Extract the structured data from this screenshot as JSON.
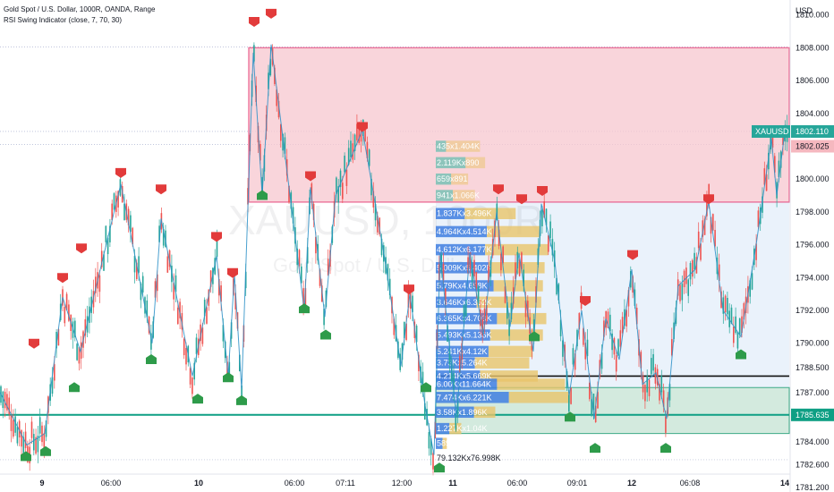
{
  "header": {
    "symbol_line": "Gold Spot / U.S. Dollar, 1000R, OANDA, Range",
    "indicator_line": "RSI Swing Indicator (close, 7, 70, 30)"
  },
  "watermark": {
    "symbol": "XAUUSD, 1000R",
    "name": "Gold Spot / U.S. Dollar"
  },
  "chart_data": {
    "type": "candlestick",
    "currency_label": "USD",
    "y_ticks": [
      1781.2,
      1782.6,
      1784.0,
      1785.635,
      1787.0,
      1788.5,
      1790.0,
      1792.0,
      1794.0,
      1796.0,
      1798.0,
      1800.0,
      1802.025,
      1804.0,
      1806.0,
      1808.0,
      1810.0
    ],
    "y_tick_labels": [
      "1781.200",
      "1782.600",
      "1784.000",
      "1785.635",
      "1787.000",
      "1788.500",
      "1790.000",
      "1792.000",
      "1794.000",
      "1796.000",
      "1798.000",
      "1800.000",
      "1802.025",
      "1804.000",
      "1806.000",
      "1808.000",
      "1810.000"
    ],
    "x_tick_labels": [
      "9",
      "06:00",
      "10",
      "06:00",
      "07:11",
      "12:00",
      "11",
      "06:00",
      "09:01",
      "12",
      "06:08",
      "14"
    ],
    "bold_x_ticks": [
      "9",
      "10",
      "11",
      "12",
      "14"
    ],
    "last_price": {
      "label": "XAUUSD",
      "value": "1802.110"
    },
    "secondary_price": {
      "value": "1802.025"
    },
    "support_line": {
      "value": "1785.635"
    },
    "zones": [
      {
        "name": "supply",
        "top": 1808.0,
        "bottom": 1798.6,
        "color": "#f8c7cf",
        "border": "#e5457a"
      },
      {
        "name": "demand",
        "top": 1787.3,
        "bottom": 1784.5,
        "color": "#cfe9d9",
        "border": "#1e9e73"
      },
      {
        "name": "range",
        "top": 1798.6,
        "bottom": 1784.5,
        "color": "#e3effb",
        "border": "none"
      }
    ],
    "black_line": 1788.0,
    "swing_path": [
      [
        0,
        1787.0
      ],
      [
        30,
        1783.8
      ],
      [
        50,
        1784.5
      ],
      [
        70,
        1792.8
      ],
      [
        90,
        1789.5
      ],
      [
        135,
        1799.7
      ],
      [
        170,
        1790.0
      ],
      [
        180,
        1797.6
      ],
      [
        215,
        1788.0
      ],
      [
        242,
        1795.3
      ],
      [
        255,
        1788.0
      ],
      [
        262,
        1794.2
      ],
      [
        270,
        1787.2
      ],
      [
        283,
        1807.7
      ],
      [
        293,
        1799.0
      ],
      [
        303,
        1808.2
      ],
      [
        315,
        1803.0
      ],
      [
        340,
        1792.0
      ],
      [
        347,
        1799.5
      ],
      [
        363,
        1791.6
      ],
      [
        375,
        1799.0
      ],
      [
        405,
        1803.0
      ],
      [
        432,
        1794.5
      ],
      [
        448,
        1788.6
      ],
      [
        458,
        1793.0
      ],
      [
        475,
        1786.2
      ],
      [
        485,
        1783.2
      ],
      [
        492,
        1795.5
      ],
      [
        510,
        1785.5
      ],
      [
        525,
        1795.5
      ],
      [
        540,
        1790.5
      ],
      [
        555,
        1798.0
      ],
      [
        570,
        1791.0
      ],
      [
        580,
        1795.5
      ],
      [
        596,
        1789.5
      ],
      [
        605,
        1798.5
      ],
      [
        620,
        1795.0
      ],
      [
        636,
        1786.8
      ],
      [
        650,
        1792.0
      ],
      [
        664,
        1785.4
      ],
      [
        677,
        1791.5
      ],
      [
        692,
        1789.0
      ],
      [
        706,
        1794.5
      ],
      [
        718,
        1787.5
      ],
      [
        733,
        1788.2
      ],
      [
        745,
        1785.4
      ],
      [
        758,
        1793.5
      ],
      [
        777,
        1794.5
      ],
      [
        792,
        1798.6
      ],
      [
        808,
        1792.0
      ],
      [
        828,
        1790.4
      ],
      [
        845,
        1796.0
      ],
      [
        862,
        1802.5
      ],
      [
        868,
        1799.0
      ],
      [
        878,
        1803.3
      ]
    ],
    "swing_highs": [
      [
        38,
        1790.0
      ],
      [
        70,
        1794.0
      ],
      [
        91,
        1795.8
      ],
      [
        135,
        1800.4
      ],
      [
        180,
        1799.4
      ],
      [
        242,
        1796.5
      ],
      [
        260,
        1794.3
      ],
      [
        284,
        1809.6
      ],
      [
        303,
        1810.1
      ],
      [
        347,
        1800.2
      ],
      [
        405,
        1803.2
      ],
      [
        457,
        1793.3
      ],
      [
        557,
        1799.4
      ],
      [
        583,
        1798.8
      ],
      [
        606,
        1799.3
      ],
      [
        654,
        1792.6
      ],
      [
        707,
        1795.4
      ],
      [
        792,
        1798.8
      ],
      [
        873,
        1803.0
      ]
    ],
    "swing_lows": [
      [
        29,
        1783.1
      ],
      [
        51,
        1783.4
      ],
      [
        83,
        1787.3
      ],
      [
        169,
        1789.0
      ],
      [
        221,
        1786.6
      ],
      [
        255,
        1787.9
      ],
      [
        270,
        1786.5
      ],
      [
        293,
        1799.0
      ],
      [
        340,
        1792.1
      ],
      [
        364,
        1790.5
      ],
      [
        476,
        1787.3
      ],
      [
        491,
        1782.4
      ],
      [
        597,
        1790.4
      ],
      [
        637,
        1785.5
      ],
      [
        665,
        1783.6
      ],
      [
        744,
        1783.6
      ],
      [
        828,
        1789.3
      ]
    ],
    "volume_profile": [
      {
        "label": "435x1.404K",
        "price": 1802.0,
        "left": 12,
        "right": 40
      },
      {
        "label": "2.119Kx890",
        "price": 1801.0,
        "left": 35,
        "right": 23
      },
      {
        "label": "659x891",
        "price": 1800.0,
        "left": 18,
        "right": 20
      },
      {
        "label": "941x1.066K",
        "price": 1799.0,
        "left": 20,
        "right": 26
      },
      {
        "label": "1.837Kx3.496K",
        "price": 1797.9,
        "left": 34,
        "right": 60
      },
      {
        "label": "4.964Kx4.514K",
        "price": 1796.8,
        "left": 60,
        "right": 62
      },
      {
        "label": "4.612Kx6.177K",
        "price": 1795.7,
        "left": 58,
        "right": 74
      },
      {
        "label": "5.009Kx5.402K",
        "price": 1794.6,
        "left": 62,
        "right": 66
      },
      {
        "label": "5.79Kx4.698K",
        "price": 1793.5,
        "left": 68,
        "right": 58
      },
      {
        "label": "3.646Kx6.352K",
        "price": 1792.5,
        "left": 48,
        "right": 76
      },
      {
        "label": "6.365Kx4.703K",
        "price": 1791.5,
        "left": 72,
        "right": 58
      },
      {
        "label": "5.493Kx5.136K",
        "price": 1790.5,
        "left": 64,
        "right": 62
      },
      {
        "label": "5.241Kx4.12K",
        "price": 1789.5,
        "left": 62,
        "right": 52
      },
      {
        "label": "3.73Kx5.264K",
        "price": 1788.8,
        "left": 46,
        "right": 64
      },
      {
        "label": "4.214Kx5.669K",
        "price": 1788.0,
        "left": 52,
        "right": 68
      },
      {
        "label": "6.00Kx11.664K",
        "price": 1787.5,
        "left": 72,
        "right": 80
      },
      {
        "label": "7.474Kx6.221K",
        "price": 1786.7,
        "left": 86,
        "right": 72
      },
      {
        "label": "3.58Kx1.896K",
        "price": 1785.8,
        "left": 45,
        "right": 25
      },
      {
        "label": "1.227Kx1.04K",
        "price": 1784.8,
        "left": 16,
        "right": 14
      },
      {
        "label": "589x332",
        "price": 1783.9,
        "left": 8,
        "right": 5
      },
      {
        "label": "79.132Kx76.998K",
        "price": 1783.0,
        "left": 0,
        "right": 0
      }
    ],
    "colors": {
      "up": "#26a69a",
      "down": "#ef5350",
      "swing_line": "#2a8fc7",
      "high_marker": "#e23b3b",
      "low_marker": "#2e9b4a",
      "vp_buy": "#3f7fe0",
      "vp_sell": "#e9c46a",
      "vp_teal": "#35b7a0",
      "last_price_tag": "#26a69a"
    }
  }
}
